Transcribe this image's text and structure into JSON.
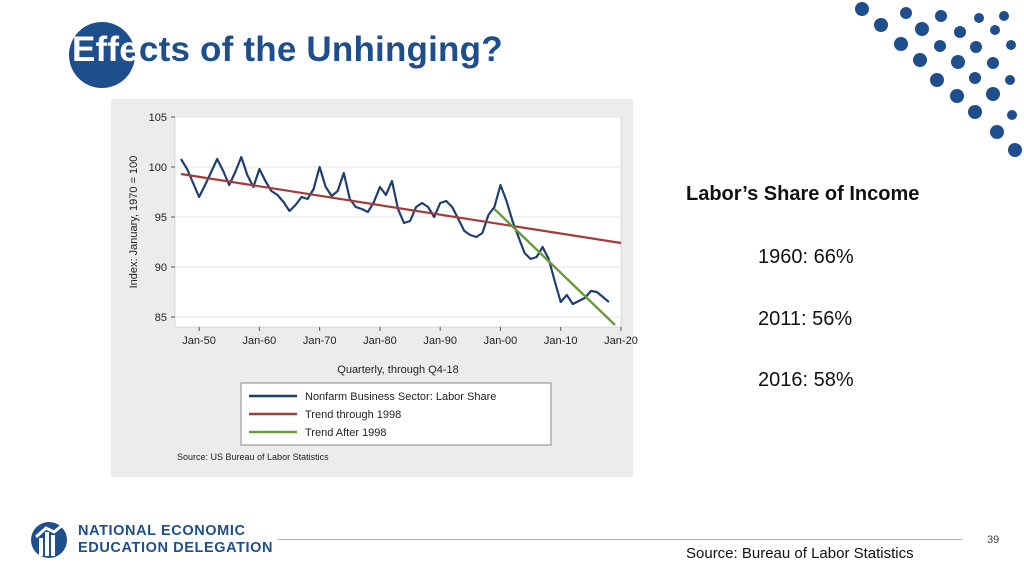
{
  "slide": {
    "title_inverted": "Effe",
    "title_rest": "cts of the Unhinging?",
    "page_number": "39",
    "footer_source": "Source: Bureau of Labor Statistics",
    "logo_line1": "NATIONAL ECONOMIC",
    "logo_line2": "EDUCATION DELEGATION",
    "brand_color": "#1f4e8c"
  },
  "info": {
    "heading": "Labor’s Share of Income",
    "stats": [
      "1960:  66%",
      "2011:  56%",
      "2016:  58%"
    ]
  },
  "chart_data": {
    "type": "line",
    "ylabel": "Index: January, 1970 = 100",
    "xlabel": "Quarterly, through Q4-18",
    "xlim": [
      1946,
      2020
    ],
    "ylim": [
      84,
      105
    ],
    "xticks": [
      1950,
      1960,
      1970,
      1980,
      1990,
      2000,
      2010,
      2020
    ],
    "xtick_labels": [
      "Jan-50",
      "Jan-60",
      "Jan-70",
      "Jan-80",
      "Jan-90",
      "Jan-00",
      "Jan-10",
      "Jan-20"
    ],
    "yticks": [
      85,
      90,
      95,
      100,
      105
    ],
    "grid": "horizontal",
    "legend_placement": "bottom",
    "source_note": "Source: US Bureau of Labor Statistics",
    "series": [
      {
        "name": "Nonfarm Business Sector: Labor Share",
        "color": "#1f3f6e",
        "points": [
          [
            1947,
            100.8
          ],
          [
            1948,
            99.8
          ],
          [
            1949,
            98.4
          ],
          [
            1950,
            97.0
          ],
          [
            1951,
            98.2
          ],
          [
            1952,
            99.5
          ],
          [
            1953,
            100.8
          ],
          [
            1954,
            99.6
          ],
          [
            1955,
            98.2
          ],
          [
            1956,
            99.5
          ],
          [
            1957,
            101.0
          ],
          [
            1958,
            99.2
          ],
          [
            1959,
            98.0
          ],
          [
            1960,
            99.8
          ],
          [
            1961,
            98.6
          ],
          [
            1962,
            97.6
          ],
          [
            1963,
            97.2
          ],
          [
            1964,
            96.5
          ],
          [
            1965,
            95.6
          ],
          [
            1966,
            96.2
          ],
          [
            1967,
            97.0
          ],
          [
            1968,
            96.8
          ],
          [
            1969,
            97.8
          ],
          [
            1970,
            100.0
          ],
          [
            1971,
            98.0
          ],
          [
            1972,
            97.1
          ],
          [
            1973,
            97.6
          ],
          [
            1974,
            99.4
          ],
          [
            1975,
            96.8
          ],
          [
            1976,
            96.0
          ],
          [
            1977,
            95.8
          ],
          [
            1978,
            95.5
          ],
          [
            1979,
            96.5
          ],
          [
            1980,
            98.0
          ],
          [
            1981,
            97.2
          ],
          [
            1982,
            98.6
          ],
          [
            1983,
            95.8
          ],
          [
            1984,
            94.4
          ],
          [
            1985,
            94.6
          ],
          [
            1986,
            96.0
          ],
          [
            1987,
            96.4
          ],
          [
            1988,
            96.0
          ],
          [
            1989,
            95.0
          ],
          [
            1990,
            96.4
          ],
          [
            1991,
            96.6
          ],
          [
            1992,
            96.0
          ],
          [
            1993,
            94.8
          ],
          [
            1994,
            93.6
          ],
          [
            1995,
            93.2
          ],
          [
            1996,
            93.0
          ],
          [
            1997,
            93.4
          ],
          [
            1998,
            95.2
          ],
          [
            1999,
            96.0
          ],
          [
            2000,
            98.2
          ],
          [
            2001,
            96.6
          ],
          [
            2002,
            94.6
          ],
          [
            2003,
            93.0
          ],
          [
            2004,
            91.4
          ],
          [
            2005,
            90.8
          ],
          [
            2006,
            91.0
          ],
          [
            2007,
            92.0
          ],
          [
            2008,
            90.8
          ],
          [
            2009,
            88.6
          ],
          [
            2010,
            86.5
          ],
          [
            2011,
            87.2
          ],
          [
            2012,
            86.3
          ],
          [
            2013,
            86.6
          ],
          [
            2014,
            86.9
          ],
          [
            2015,
            87.6
          ],
          [
            2016,
            87.5
          ],
          [
            2017,
            87.0
          ],
          [
            2018,
            86.5
          ]
        ]
      },
      {
        "name": "Trend through 1998",
        "color": "#a33b3b",
        "points": [
          [
            1947,
            99.3
          ],
          [
            2020,
            92.4
          ]
        ]
      },
      {
        "name": "Trend After 1998",
        "color": "#6a9a3a",
        "points": [
          [
            1999,
            95.8
          ],
          [
            2019,
            84.2
          ]
        ]
      }
    ]
  }
}
